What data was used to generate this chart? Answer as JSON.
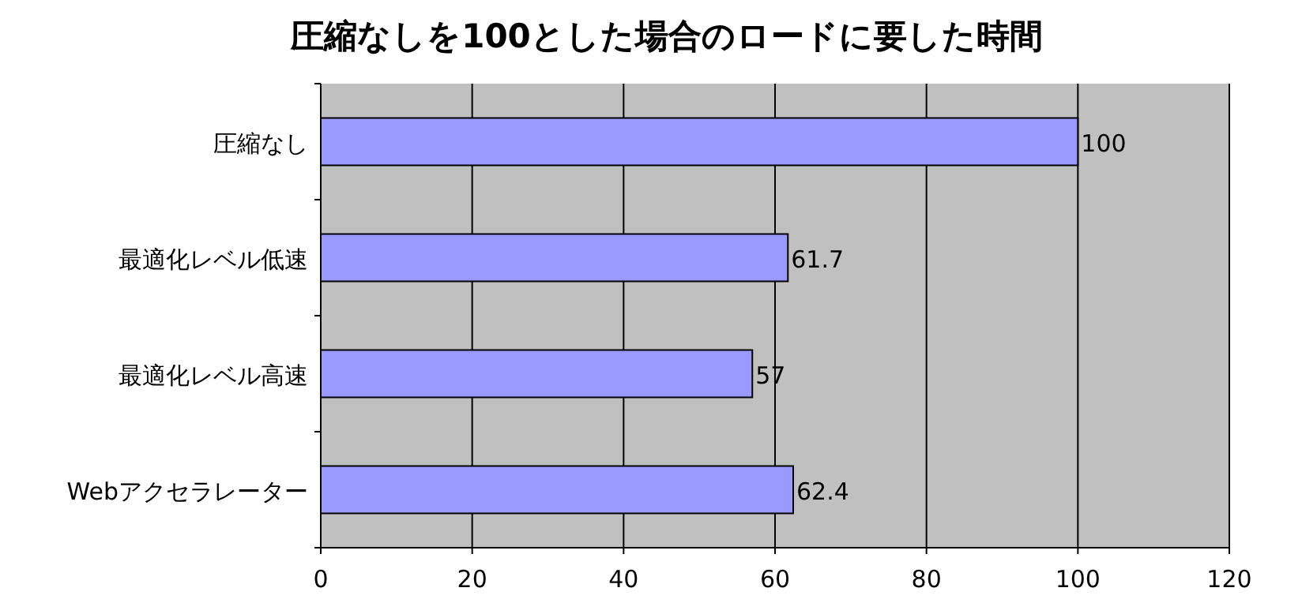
{
  "chart_data": {
    "type": "bar",
    "orientation": "horizontal",
    "title": "圧縮なしを100とした場合のロードに要した時間",
    "categories": [
      "圧縮なし",
      "最適化レベル低速",
      "最適化レベル高速",
      "Webアクセラレーター"
    ],
    "values": [
      100,
      61.7,
      57,
      62.4
    ],
    "color": "#9999ff",
    "xlim": [
      0,
      120
    ],
    "xticks": [
      0,
      20,
      40,
      60,
      80,
      100,
      120
    ],
    "grid": "x",
    "data_labels": true
  }
}
